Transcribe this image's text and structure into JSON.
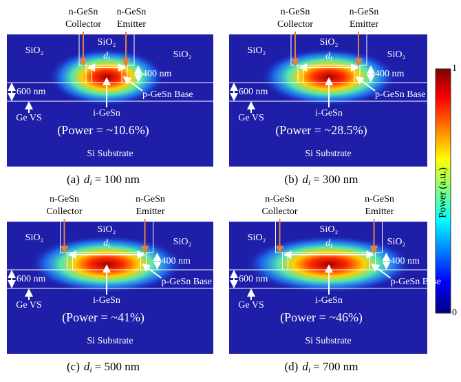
{
  "colorbar": {
    "max": "1",
    "min": "0",
    "label": "Power (a.u.)"
  },
  "panels": [
    {
      "labels": {
        "collector": "n-GeSn",
        "collector_role": "Collector",
        "emitter": "n-GeSn",
        "emitter_role": "Emitter",
        "oxide_left": "SiO₂",
        "oxide_center": "SiO₂",
        "oxide_right": "SiO₂",
        "width_symbol": "d",
        "width_subscript": "i",
        "top_thickness": "400 nm",
        "bottom_thickness": "600 nm",
        "base": "p-GeSn Base",
        "intrinsic": "i-GeSn",
        "buffer": "Ge VS",
        "power": "(Power = ~10.6%)",
        "substrate": "Si Substrate"
      },
      "caption": {
        "tag": "(a)",
        "symbol": "d",
        "subscript": "i",
        "value": "= 100 nm"
      }
    },
    {
      "labels": {
        "collector": "n-GeSn",
        "collector_role": "Collector",
        "emitter": "n-GeSn",
        "emitter_role": "Emitter",
        "oxide_left": "SiO₂",
        "oxide_center": "SiO₂",
        "oxide_right": "SiO₂",
        "width_symbol": "d",
        "width_subscript": "i",
        "top_thickness": "400 nm",
        "bottom_thickness": "600 nm",
        "base": "p-GeSn Base",
        "intrinsic": "i-GeSn",
        "buffer": "Ge VS",
        "power": "(Power = ~28.5%)",
        "substrate": "Si Substrate"
      },
      "caption": {
        "tag": "(b)",
        "symbol": "d",
        "subscript": "i",
        "value": "= 300 nm"
      }
    },
    {
      "labels": {
        "collector": "n-GeSn",
        "collector_role": "Collector",
        "emitter": "n-GeSn",
        "emitter_role": "Emitter",
        "oxide_left": "SiO₂",
        "oxide_center": "SiO₂",
        "oxide_right": "SiO₂",
        "width_symbol": "d",
        "width_subscript": "i",
        "top_thickness": "400 nm",
        "bottom_thickness": "600 nm",
        "base": "p-GeSn Base",
        "intrinsic": "i-GeSn",
        "buffer": "Ge VS",
        "power": "(Power = ~41%)",
        "substrate": "Si Substrate"
      },
      "caption": {
        "tag": "(c)",
        "symbol": "d",
        "subscript": "i",
        "value": "= 500 nm"
      }
    },
    {
      "labels": {
        "collector": "n-GeSn",
        "collector_role": "Collector",
        "emitter": "n-GeSn",
        "emitter_role": "Emitter",
        "oxide_left": "SiO₂",
        "oxide_center": "SiO₂",
        "oxide_right": "SiO₂",
        "width_symbol": "d",
        "width_subscript": "i",
        "top_thickness": "400 nm",
        "bottom_thickness": "600 nm",
        "base": "p-GeSn Base",
        "intrinsic": "i-GeSn",
        "buffer": "Ge VS",
        "power": "(Power = ~46%)",
        "substrate": "Si Substrate"
      },
      "caption": {
        "tag": "(d)",
        "symbol": "d",
        "subscript": "i",
        "value": "= 700 nm"
      }
    }
  ]
}
